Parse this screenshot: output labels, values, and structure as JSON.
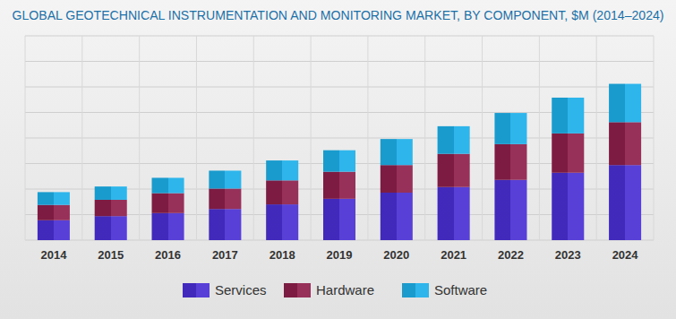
{
  "chart_data": {
    "type": "bar",
    "title": "GLOBAL GEOTECHNICAL INSTRUMENTATION AND MONITORING MARKET, BY COMPONENT, $M (2014–2024)",
    "categories": [
      "2014",
      "2015",
      "2016",
      "2017",
      "2018",
      "2019",
      "2020",
      "2021",
      "2022",
      "2023",
      "2024"
    ],
    "series": [
      {
        "name": "Services",
        "color": "#4a2fd4",
        "values": [
          390,
          470,
          530,
          610,
          700,
          810,
          930,
          1040,
          1180,
          1320,
          1470
        ]
      },
      {
        "name": "Hardware",
        "color": "#8e1f4c",
        "values": [
          300,
          320,
          390,
          400,
          470,
          530,
          540,
          650,
          700,
          770,
          840
        ]
      },
      {
        "name": "Software",
        "color": "#1cb0ea",
        "values": [
          250,
          260,
          300,
          350,
          390,
          420,
          510,
          540,
          610,
          700,
          750
        ]
      }
    ],
    "stacked": true,
    "ylim": [
      0,
      4000
    ],
    "yticks": [
      0,
      500,
      1000,
      1500,
      2000,
      2500,
      3000,
      3500,
      4000
    ],
    "grid": true,
    "tick_labels": "x",
    "legend": "bottom"
  }
}
